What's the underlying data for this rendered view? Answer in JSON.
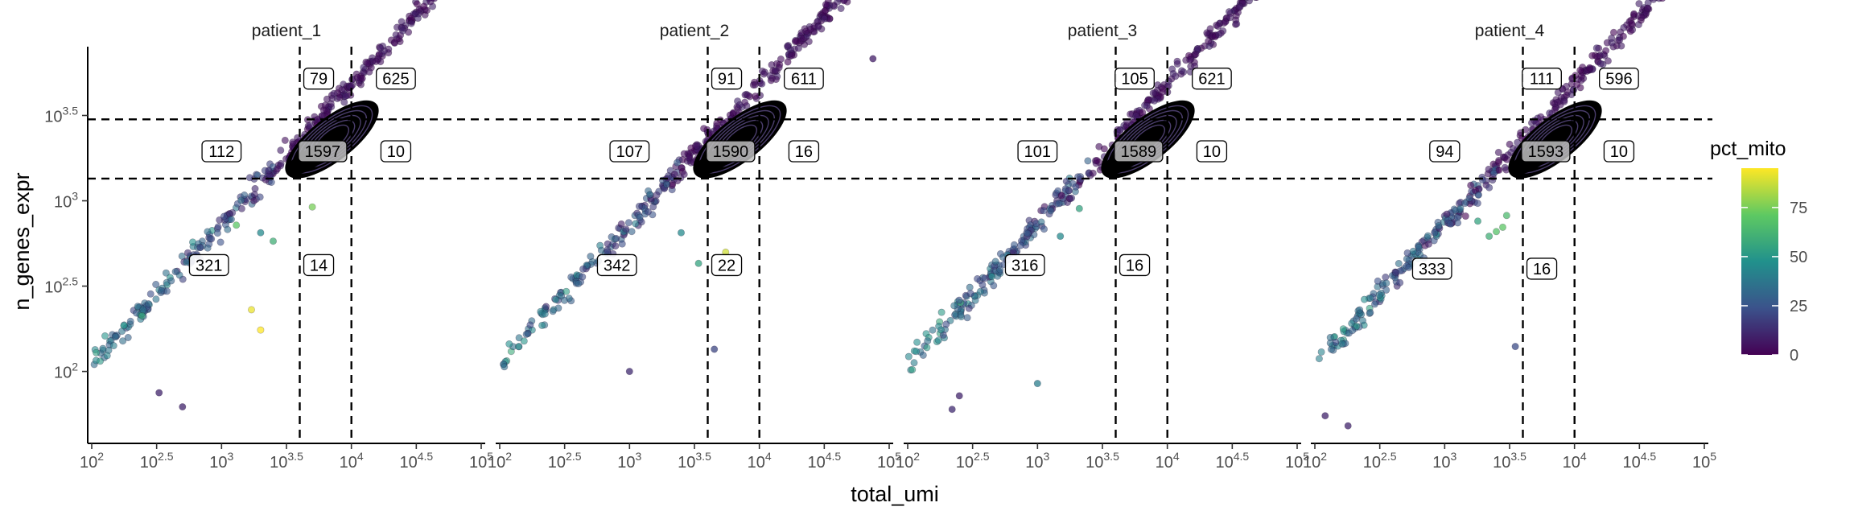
{
  "chart_data": {
    "type": "scatter",
    "xlabel": "total_umi",
    "ylabel": "n_genes_expr",
    "x_scale": "log10",
    "y_scale": "log10",
    "xlim": [
      100,
      100000
    ],
    "ylim": [
      40,
      8000
    ],
    "x_ticks": [
      "10^2",
      "10^2.5",
      "10^3",
      "10^3.5",
      "10^4",
      "10^4.5",
      "10^5"
    ],
    "y_ticks": [
      "10^2",
      "10^2.5",
      "10^3",
      "10^3.5"
    ],
    "x_thresholds": [
      4000,
      10000
    ],
    "y_thresholds": [
      3000,
      1350
    ],
    "color_variable": "pct_mito",
    "colorbar": {
      "title": "pct_mito",
      "min": 0,
      "max": 95,
      "ticks": [
        0,
        25,
        50,
        75
      ]
    },
    "density_contours": true,
    "grid": false,
    "legend_position": "right",
    "facets": [
      {
        "label": "patient_1",
        "counts": [
          {
            "value": "79",
            "x": 5600,
            "y": 5200
          },
          {
            "value": "625",
            "x": 22000,
            "y": 5200
          },
          {
            "value": "112",
            "x": 1000,
            "y": 1950
          },
          {
            "value": "1597",
            "x": 6000,
            "y": 1950
          },
          {
            "value": "10",
            "x": 22000,
            "y": 1950
          },
          {
            "value": "321",
            "x": 800,
            "y": 420
          },
          {
            "value": "14",
            "x": 5600,
            "y": 420
          }
        ],
        "outliers": [
          {
            "x": 5000,
            "y": 920,
            "pct_mito": 75
          },
          {
            "x": 1700,
            "y": 230,
            "pct_mito": 92
          },
          {
            "x": 2000,
            "y": 175,
            "pct_mito": 95
          },
          {
            "x": 1300,
            "y": 720,
            "pct_mito": 70
          },
          {
            "x": 2500,
            "y": 580,
            "pct_mito": 60
          },
          {
            "x": 2000,
            "y": 650,
            "pct_mito": 45
          },
          {
            "x": 330,
            "y": 75,
            "pct_mito": 10
          },
          {
            "x": 500,
            "y": 62,
            "pct_mito": 10
          }
        ]
      },
      {
        "label": "patient_2",
        "counts": [
          {
            "value": "91",
            "x": 5600,
            "y": 5200
          },
          {
            "value": "611",
            "x": 22000,
            "y": 5200
          },
          {
            "value": "107",
            "x": 1000,
            "y": 1950
          },
          {
            "value": "1590",
            "x": 6000,
            "y": 1950
          },
          {
            "value": "16",
            "x": 22000,
            "y": 1950
          },
          {
            "value": "342",
            "x": 800,
            "y": 420
          },
          {
            "value": "22",
            "x": 5600,
            "y": 420
          }
        ],
        "outliers": [
          {
            "x": 5500,
            "y": 500,
            "pct_mito": 88
          },
          {
            "x": 4500,
            "y": 135,
            "pct_mito": 20
          },
          {
            "x": 1000,
            "y": 100,
            "pct_mito": 12
          },
          {
            "x": 75000,
            "y": 6800,
            "pct_mito": 8
          },
          {
            "x": 3400,
            "y": 430,
            "pct_mito": 55
          },
          {
            "x": 2500,
            "y": 650,
            "pct_mito": 45
          }
        ]
      },
      {
        "label": "patient_3",
        "counts": [
          {
            "value": "105",
            "x": 5600,
            "y": 5200
          },
          {
            "value": "621",
            "x": 22000,
            "y": 5200
          },
          {
            "value": "101",
            "x": 1000,
            "y": 1950
          },
          {
            "value": "1589",
            "x": 6000,
            "y": 1950
          },
          {
            "value": "10",
            "x": 22000,
            "y": 1950
          },
          {
            "value": "316",
            "x": 800,
            "y": 420
          },
          {
            "value": "16",
            "x": 5600,
            "y": 420
          }
        ],
        "outliers": [
          {
            "x": 1000,
            "y": 85,
            "pct_mito": 40
          },
          {
            "x": 2100,
            "y": 900,
            "pct_mito": 55
          },
          {
            "x": 1500,
            "y": 620,
            "pct_mito": 45
          },
          {
            "x": 220,
            "y": 60,
            "pct_mito": 12
          },
          {
            "x": 250,
            "y": 72,
            "pct_mito": 10
          }
        ]
      },
      {
        "label": "patient_4",
        "counts": [
          {
            "value": "111",
            "x": 5600,
            "y": 5200
          },
          {
            "value": "596",
            "x": 22000,
            "y": 5200
          },
          {
            "value": "94",
            "x": 1000,
            "y": 1950
          },
          {
            "value": "1593",
            "x": 6000,
            "y": 1950
          },
          {
            "value": "10",
            "x": 22000,
            "y": 1950
          },
          {
            "value": "333",
            "x": 800,
            "y": 400
          },
          {
            "value": "16",
            "x": 5600,
            "y": 400
          }
        ],
        "outliers": [
          {
            "x": 3500,
            "y": 140,
            "pct_mito": 22
          },
          {
            "x": 2800,
            "y": 700,
            "pct_mito": 70
          },
          {
            "x": 2500,
            "y": 660,
            "pct_mito": 68
          },
          {
            "x": 2200,
            "y": 620,
            "pct_mito": 60
          },
          {
            "x": 3000,
            "y": 820,
            "pct_mito": 65
          },
          {
            "x": 1800,
            "y": 760,
            "pct_mito": 55
          },
          {
            "x": 120,
            "y": 55,
            "pct_mito": 10
          },
          {
            "x": 180,
            "y": 48,
            "pct_mito": 10
          }
        ]
      }
    ]
  }
}
